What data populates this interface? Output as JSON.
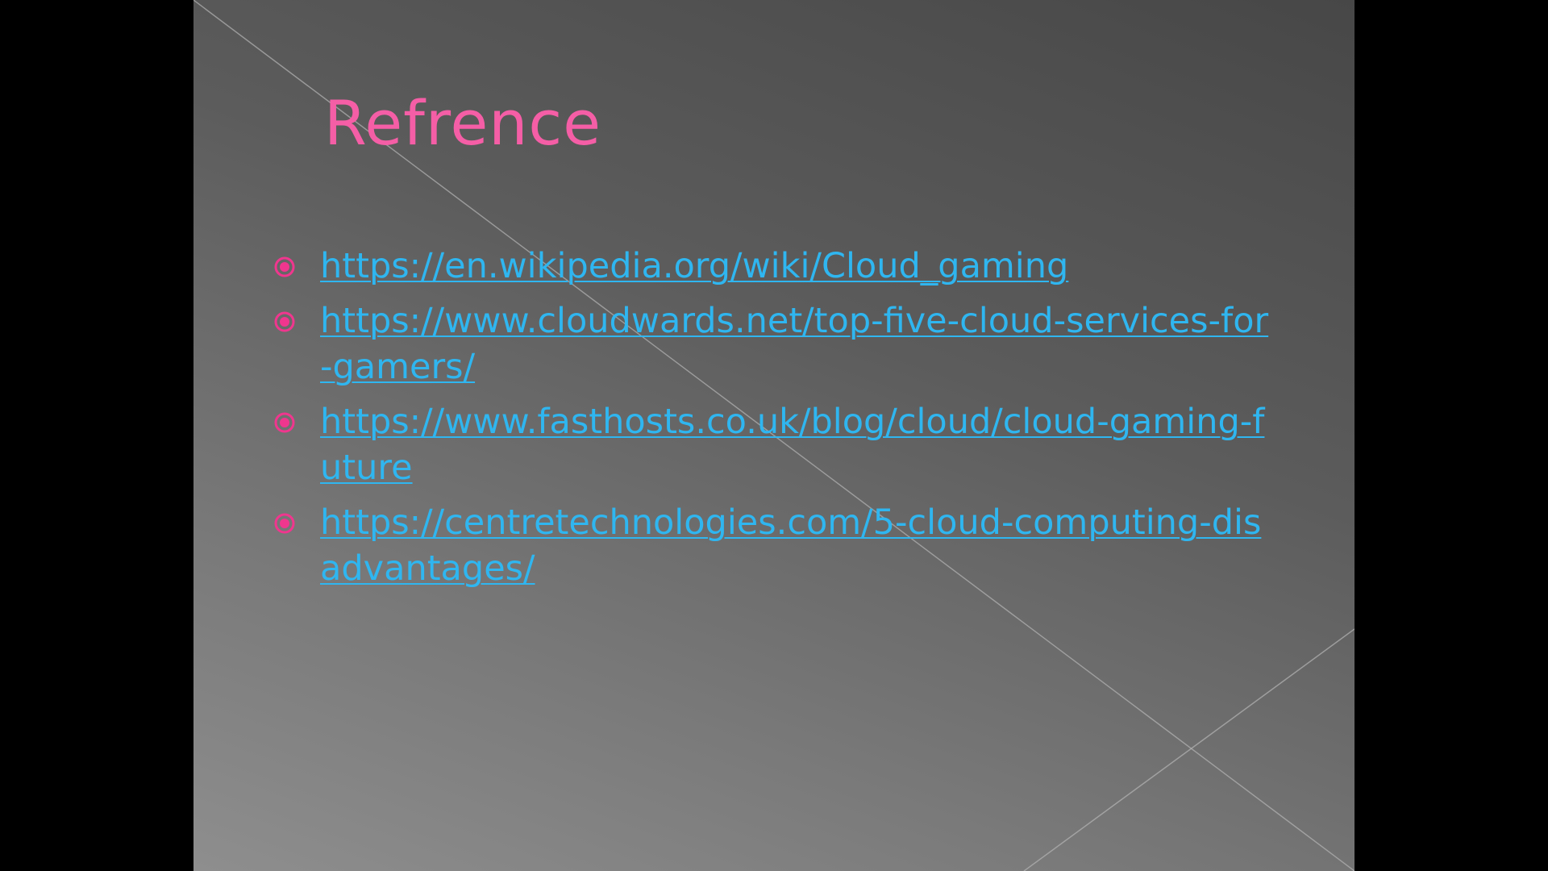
{
  "slide": {
    "title": "Refrence",
    "colors": {
      "title": "#f55ea6",
      "link": "#2fb6f0",
      "bullet": "#f0368e",
      "background_dark": "#474747",
      "background_light": "#8e8e8e"
    },
    "bullet_icon": "radio-circle-icon",
    "references": [
      {
        "url": "https://en.wikipedia.org/wiki/Cloud_gaming"
      },
      {
        "url": "https://www.cloudwards.net/top-five-cloud-services-for-gamers/"
      },
      {
        "url": "https://www.fasthosts.co.uk/blog/cloud/cloud-gaming-future"
      },
      {
        "url": "https://centretechnologies.com/5-cloud-computing-disadvantages/"
      }
    ]
  }
}
